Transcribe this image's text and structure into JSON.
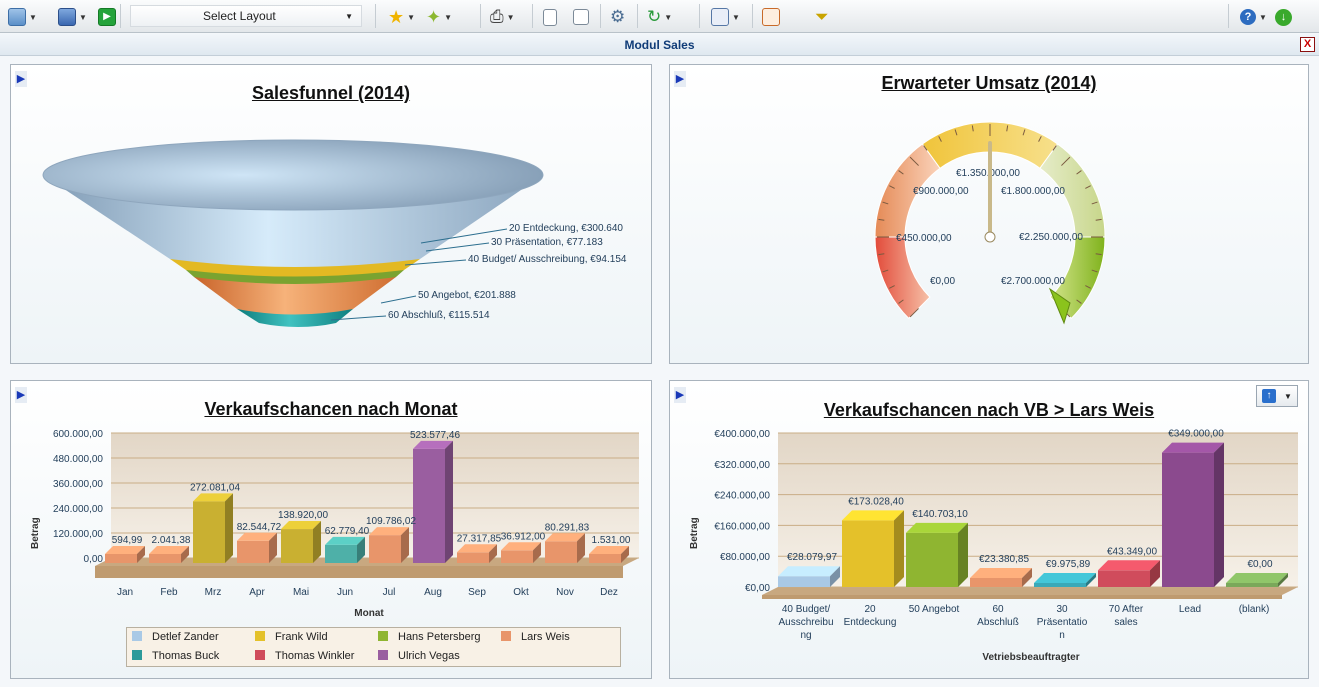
{
  "toolbar": {
    "layout_select": "Select Layout",
    "icons": [
      "folder-open-icon",
      "save-icon",
      "run-icon",
      "star-icon",
      "add-favorite-icon",
      "print-icon",
      "copy-icon",
      "export-icon",
      "settings-icon",
      "refresh-icon",
      "add-widget-icon",
      "layout-grid-icon",
      "filter-icon",
      "help-icon",
      "download-icon"
    ]
  },
  "module": {
    "title": "Modul Sales",
    "close_label": "X"
  },
  "funnel": {
    "title": "Salesfunnel (2014)",
    "labels": [
      "20 Entdeckung, €300.640",
      "30 Präsentation, €77.183",
      "40 Budget/ Ausschreibung, €94.154",
      "50 Angebot, €201.888",
      "60 Abschluß, €115.514"
    ]
  },
  "gauge": {
    "title": "Erwarteter Umsatz (2014)",
    "ticks": [
      "€0,00",
      "€450.000,00",
      "€900.000,00",
      "€1.350.000,00",
      "€1.800.000,00",
      "€2.250.000,00",
      "€2.700.000,00"
    ],
    "needle_value": 1350000
  },
  "chart_month": {
    "title": "Verkaufschancen nach Monat",
    "ylabel": "Betrag",
    "xlabel": "Monat",
    "yticks": [
      "0,00",
      "120.000,00",
      "240.000,00",
      "360.000,00",
      "480.000,00",
      "600.000,00"
    ],
    "categories": [
      "Jan",
      "Feb",
      "Mrz",
      "Apr",
      "Mai",
      "Jun",
      "Jul",
      "Aug",
      "Sep",
      "Okt",
      "Nov",
      "Dez"
    ],
    "value_labels": [
      "594,99",
      "2.041,38",
      "272.081,04",
      "82.544,72",
      "138.920,00",
      "62.779,40",
      "109.786,02",
      "523.577,46",
      "27.317,85",
      "36.912,00",
      "80.291,83",
      "1.531,00"
    ],
    "legend": [
      "Detlef Zander",
      "Frank Wild",
      "Hans Petersberg",
      "Lars Weis",
      "Thomas Buck",
      "Thomas Winkler",
      "Ulrich Vegas"
    ]
  },
  "chart_vb": {
    "title": "Verkaufschancen nach VB > Lars Weis",
    "ylabel": "Betrag",
    "xlabel": "Vetriebsbeauftragter",
    "yticks": [
      "€0,00",
      "€80.000,00",
      "€160.000,00",
      "€240.000,00",
      "€320.000,00",
      "€400.000,00"
    ],
    "categories": [
      [
        "40 Budget/",
        "Ausschreibu",
        "ng"
      ],
      [
        "20",
        "Entdeckung"
      ],
      [
        "50 Angebot"
      ],
      [
        "60",
        "Abschluß"
      ],
      [
        "30",
        "Präsentatio",
        "n"
      ],
      [
        "70 After",
        "sales"
      ],
      [
        "Lead"
      ],
      [
        "(blank)"
      ]
    ],
    "value_labels": [
      "€28.079,97",
      "€173.028,40",
      "€140.703,10",
      "€23.380,85",
      "€9.975,89",
      "€43.349,00",
      "€349.000,00",
      "€0,00"
    ]
  },
  "chart_data": [
    {
      "type": "bar",
      "title": "Verkaufschancen nach Monat",
      "xlabel": "Monat",
      "ylabel": "Betrag",
      "ylim": [
        0,
        600000
      ],
      "categories": [
        "Jan",
        "Feb",
        "Mrz",
        "Apr",
        "Mai",
        "Jun",
        "Jul",
        "Aug",
        "Sep",
        "Okt",
        "Nov",
        "Dez"
      ],
      "values": [
        594.99,
        2041.38,
        272081.04,
        82544.72,
        138920.0,
        62779.4,
        109786.02,
        523577.46,
        27317.85,
        36912.0,
        80291.83,
        1531.0
      ],
      "series_names": [
        "Detlef Zander",
        "Frank Wild",
        "Hans Petersberg",
        "Lars Weis",
        "Thomas Buck",
        "Thomas Winkler",
        "Ulrich Vegas"
      ],
      "stacked": true,
      "grid": true,
      "legend_position": "bottom"
    },
    {
      "type": "bar",
      "title": "Verkaufschancen nach VB > Lars Weis",
      "xlabel": "Vetriebsbeauftragter",
      "ylabel": "Betrag",
      "ylim": [
        0,
        400000
      ],
      "categories": [
        "40 Budget/ Ausschreibung",
        "20 Entdeckung",
        "50 Angebot",
        "60 Abschluß",
        "30 Präsentation",
        "70 After sales",
        "Lead",
        "(blank)"
      ],
      "values": [
        28079.97,
        173028.4,
        140703.1,
        23380.85,
        9975.89,
        43349.0,
        349000.0,
        0.0
      ],
      "grid": true
    },
    {
      "type": "funnel",
      "title": "Salesfunnel (2014)",
      "categories": [
        "20 Entdeckung",
        "30 Präsentation",
        "40 Budget/ Ausschreibung",
        "50 Angebot",
        "60 Abschluß"
      ],
      "values": [
        300640,
        77183,
        94154,
        201888,
        115514
      ]
    },
    {
      "type": "gauge",
      "title": "Erwarteter Umsatz (2014)",
      "range": [
        0,
        2700000
      ],
      "value": 1350000
    }
  ],
  "colors": {
    "month_bars": [
      "#e8956a",
      "#e8956a",
      "#c9b031",
      "#e8956a",
      "#c9b031",
      "#4eb0a8",
      "#e8956a",
      "#9a5ea0",
      "#e8956a",
      "#e8956a",
      "#e8956a",
      "#e8956a"
    ],
    "vb_bars": [
      "#a9c9e6",
      "#e4c12a",
      "#8fb531",
      "#e8956a",
      "#3aa9b8",
      "#d04c5c",
      "#8b4a8e",
      "#7aa85a"
    ],
    "legend": [
      "#a9c9e6",
      "#e4c12a",
      "#8fb531",
      "#e8956a",
      "#2c9a9a",
      "#d04c5c",
      "#9a5ea0"
    ]
  }
}
